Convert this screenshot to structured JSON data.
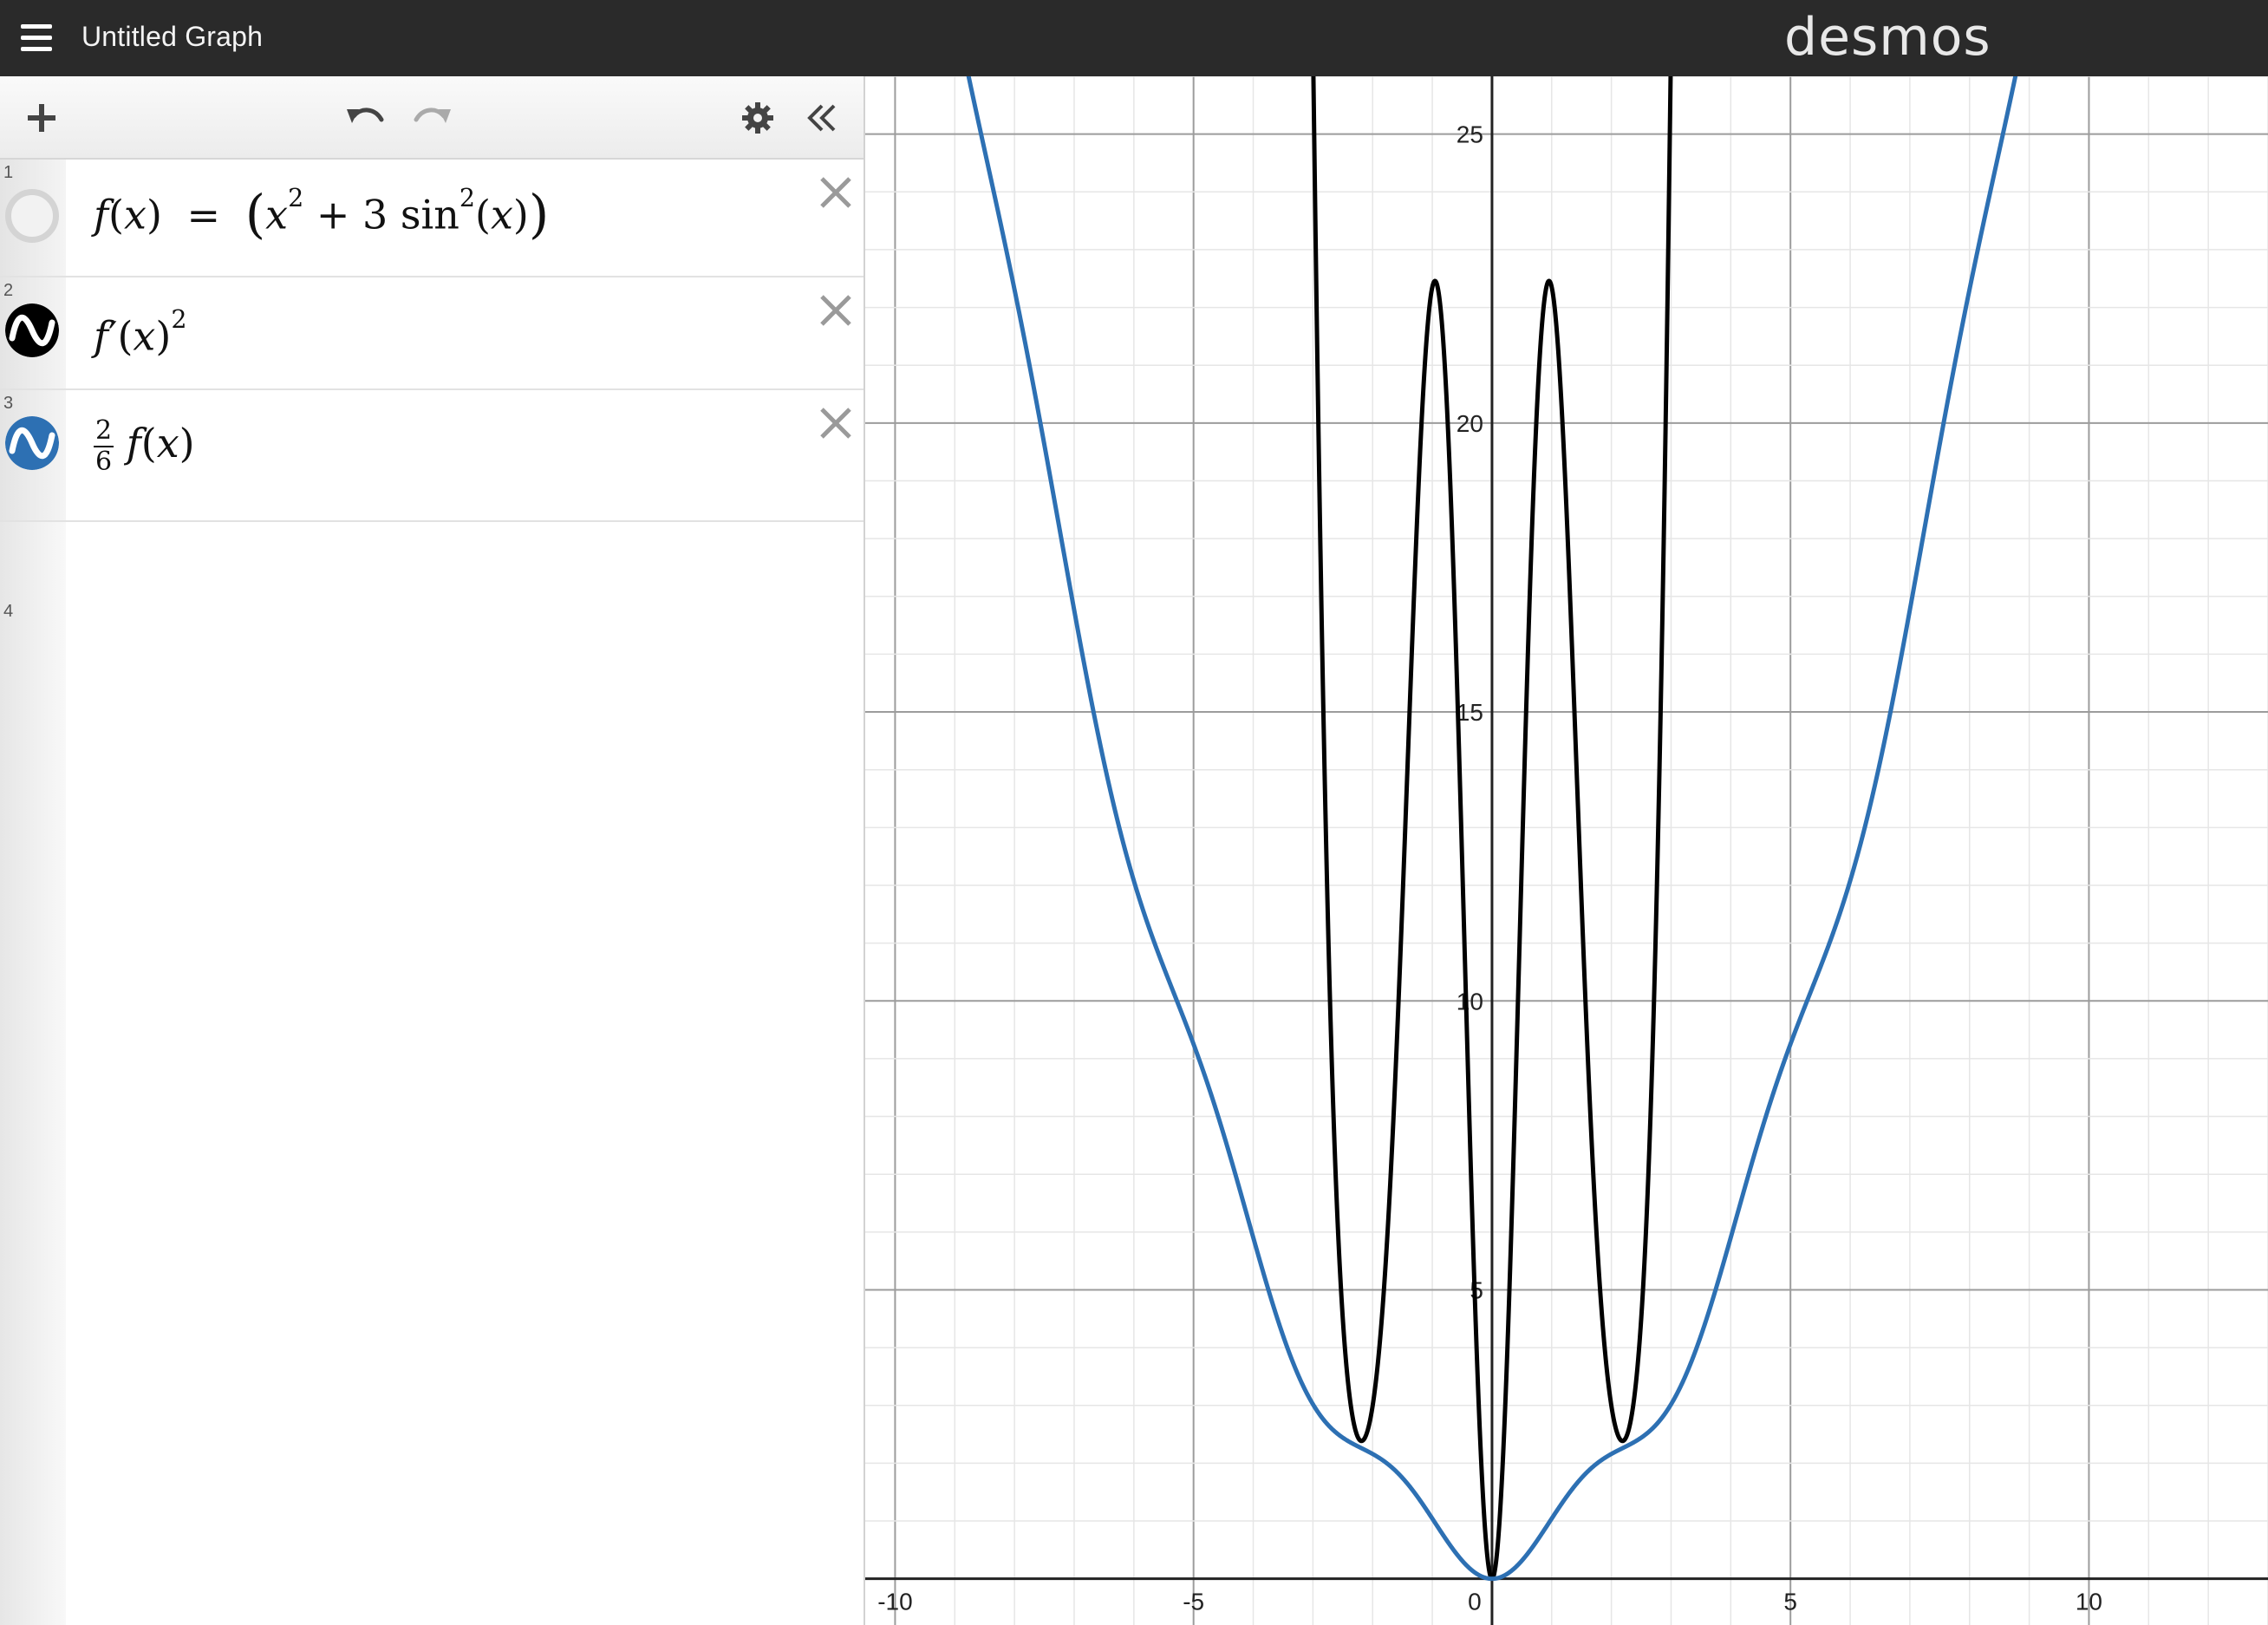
{
  "header": {
    "title": "Untitled Graph",
    "brand": "desmos"
  },
  "toolbar": {
    "icons": [
      "plus-icon",
      "undo-icon",
      "redo-icon",
      "gear-icon",
      "double-chevron-left-icon"
    ]
  },
  "expressions": [
    {
      "number": "1",
      "latex_text": "f(x) = (x^2 + 3 sin^2(x))",
      "color": "#c8c8c8",
      "hidden": true
    },
    {
      "number": "2",
      "latex_text": "f'(x)^2",
      "color": "#000000",
      "hidden": false
    },
    {
      "number": "3",
      "latex_text": "2/6 f(x)",
      "color": "#2d70b3",
      "hidden": false
    }
  ],
  "empty_row_number": "4",
  "chart_data": {
    "type": "line",
    "xlim": [
      -10.5,
      13.0
    ],
    "ylim": [
      -0.8,
      26.0
    ],
    "x_ticks": [
      "-10",
      "-5",
      "0",
      "5",
      "10"
    ],
    "y_ticks": [
      "5",
      "10",
      "15",
      "20",
      "25"
    ],
    "grid": true,
    "series": [
      {
        "expression": "f'(x)^2",
        "color": "#000000",
        "formula": "(2x + 3 sin(2x))^2"
      },
      {
        "expression": "2/6 f(x)",
        "color": "#2d70b3",
        "formula": "(x^2 + 3 sin^2(x)) / 3"
      }
    ]
  }
}
